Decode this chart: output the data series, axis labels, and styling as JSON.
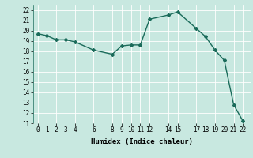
{
  "x": [
    0,
    1,
    2,
    3,
    4,
    6,
    8,
    9,
    10,
    11,
    12,
    14,
    15,
    17,
    18,
    19,
    20,
    21,
    22
  ],
  "y": [
    19.7,
    19.5,
    19.1,
    19.1,
    18.9,
    18.1,
    17.7,
    18.5,
    18.6,
    18.6,
    21.1,
    21.5,
    21.8,
    20.2,
    19.4,
    18.1,
    17.1,
    12.8,
    11.2
  ],
  "xlim": [
    -0.5,
    22.8
  ],
  "ylim": [
    11,
    22.5
  ],
  "xticks": [
    0,
    1,
    2,
    3,
    4,
    6,
    8,
    9,
    10,
    11,
    12,
    14,
    15,
    17,
    18,
    19,
    20,
    21,
    22
  ],
  "yticks": [
    11,
    12,
    13,
    14,
    15,
    16,
    17,
    18,
    19,
    20,
    21,
    22
  ],
  "xlabel": "Humidex (Indice chaleur)",
  "bg_color": "#c8e8e0",
  "grid_color": "#ffffff",
  "line_color": "#1a6b5a",
  "marker": "D",
  "marker_size": 2.0,
  "line_width": 1.0,
  "tick_fontsize": 5.5,
  "xlabel_fontsize": 6.5
}
